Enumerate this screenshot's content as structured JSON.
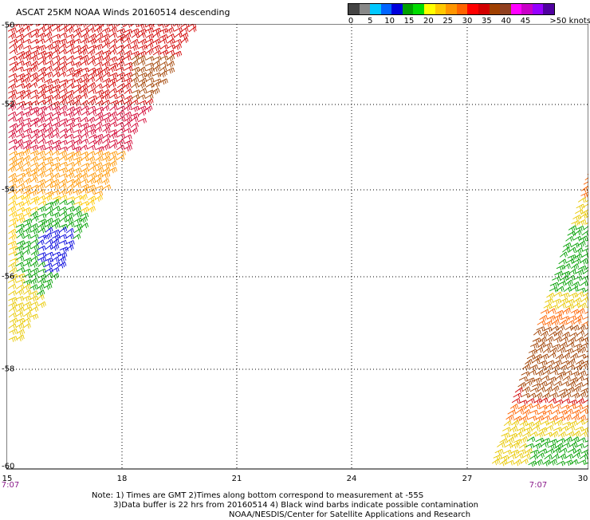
{
  "title": "ASCAT 25KM NOAA Winds 20160514 descending",
  "legend": {
    "colors": [
      "#444444",
      "#888888",
      "#00c8ff",
      "#0064ff",
      "#0000dc",
      "#00a000",
      "#00dc00",
      "#ffff00",
      "#ffc800",
      "#ff9600",
      "#ff6400",
      "#ff0000",
      "#d20000",
      "#a04000",
      "#904020",
      "#ff00ff",
      "#c800c8",
      "#9600ff",
      "#5000a0"
    ],
    "tick_labels": [
      "0",
      "5",
      "10",
      "15",
      "20",
      "25",
      "30",
      "35",
      "40",
      "45",
      ">50 knots"
    ]
  },
  "axes": {
    "lon_labels": [
      "15",
      "18",
      "21",
      "24",
      "27",
      "30"
    ],
    "lat_labels": [
      "-50",
      "-52",
      "-54",
      "-56",
      "-58",
      "-60"
    ]
  },
  "swath_times": [
    "7:07",
    "7:07"
  ],
  "notes": [
    "Note: 1) Times are GMT 2)Times along bottom correspond to measurement at -55S",
    "3)Data buffer is 22 hrs from 20160514 4) Black wind barbs indicate possible contamination",
    "NOAA/NESDIS/Center for Satellite Applications and Research"
  ]
}
